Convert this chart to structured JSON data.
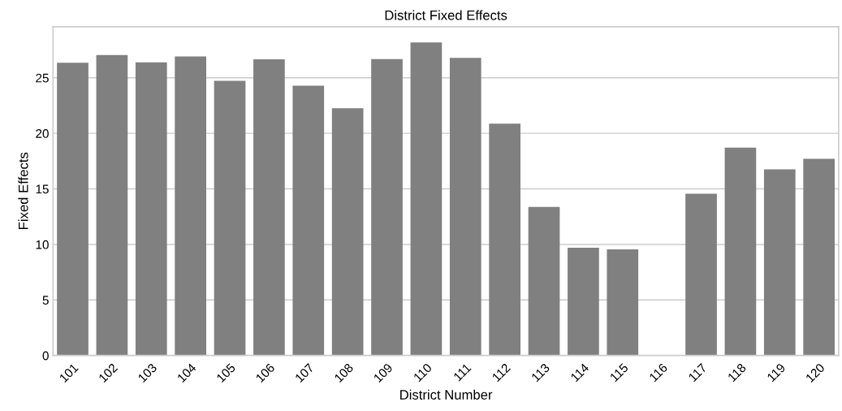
{
  "chart_data": {
    "type": "bar",
    "title": "District Fixed Effects",
    "xlabel": "District Number",
    "ylabel": "Fixed Effects",
    "categories": [
      "101",
      "102",
      "103",
      "104",
      "105",
      "106",
      "107",
      "108",
      "109",
      "110",
      "111",
      "112",
      "113",
      "114",
      "115",
      "116",
      "117",
      "118",
      "119",
      "120"
    ],
    "values": [
      26.35,
      27.05,
      26.39,
      26.93,
      24.73,
      26.66,
      24.29,
      22.26,
      26.69,
      28.19,
      26.79,
      20.88,
      13.38,
      9.71,
      9.56,
      0,
      14.56,
      18.71,
      16.75,
      17.71
    ],
    "color": "#808080",
    "ylim": [
      0,
      29.6
    ],
    "yticks": [
      0,
      5,
      10,
      15,
      20,
      25
    ],
    "grid": "y"
  }
}
